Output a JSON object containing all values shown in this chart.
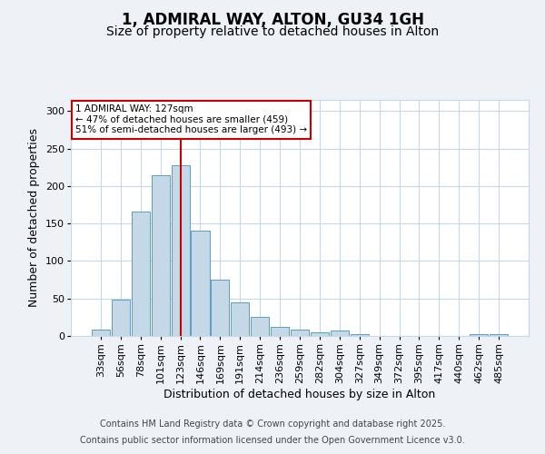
{
  "title_line1": "1, ADMIRAL WAY, ALTON, GU34 1GH",
  "title_line2": "Size of property relative to detached houses in Alton",
  "xlabel": "Distribution of detached houses by size in Alton",
  "ylabel": "Number of detached properties",
  "footer_line1": "Contains HM Land Registry data © Crown copyright and database right 2025.",
  "footer_line2": "Contains public sector information licensed under the Open Government Licence v3.0.",
  "categories": [
    "33sqm",
    "56sqm",
    "78sqm",
    "101sqm",
    "123sqm",
    "146sqm",
    "169sqm",
    "191sqm",
    "214sqm",
    "236sqm",
    "259sqm",
    "282sqm",
    "304sqm",
    "327sqm",
    "349sqm",
    "372sqm",
    "395sqm",
    "417sqm",
    "440sqm",
    "462sqm",
    "485sqm"
  ],
  "values": [
    8,
    49,
    166,
    215,
    228,
    140,
    75,
    45,
    25,
    12,
    9,
    5,
    7,
    3,
    0,
    0,
    0,
    0,
    0,
    2,
    3
  ],
  "bar_color": "#c5d8e8",
  "bar_edge_color": "#5a9ec0",
  "vline_x": 4,
  "vline_color": "#cc0000",
  "annotation_text": "1 ADMIRAL WAY: 127sqm\n← 47% of detached houses are smaller (459)\n51% of semi-detached houses are larger (493) →",
  "annotation_box_color": "#cc0000",
  "ylim": [
    0,
    315
  ],
  "yticks": [
    0,
    50,
    100,
    150,
    200,
    250,
    300
  ],
  "background_color": "#eef2f7",
  "plot_background": "#ffffff",
  "grid_color": "#c8d8e8",
  "title_fontsize": 12,
  "subtitle_fontsize": 10,
  "axis_label_fontsize": 9,
  "tick_fontsize": 8,
  "footer_fontsize": 7
}
